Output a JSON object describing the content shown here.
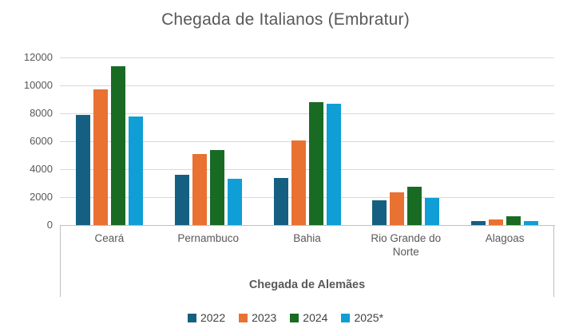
{
  "chart_data": {
    "type": "bar",
    "title": "Chegada de Italianos (Embratur)",
    "secondary_axis_label": "Chegada de Alemães",
    "categories": [
      "Ceará",
      "Pernambuco",
      "Bahia",
      "Rio Grande do Norte",
      "Alagoas"
    ],
    "series": [
      {
        "name": "2022",
        "color": "#156082",
        "values": [
          7900,
          3580,
          3350,
          1780,
          310
        ]
      },
      {
        "name": "2023",
        "color": "#E97132",
        "values": [
          9700,
          5080,
          6060,
          2340,
          430
        ]
      },
      {
        "name": "2024",
        "color": "#196B24",
        "values": [
          11400,
          5350,
          8820,
          2720,
          620
        ]
      },
      {
        "name": "2025*",
        "color": "#0F9ED5",
        "values": [
          7750,
          3330,
          8680,
          1930,
          290
        ]
      }
    ],
    "ylim": [
      0,
      12000
    ],
    "y_ticks": [
      0,
      2000,
      4000,
      6000,
      8000,
      10000,
      12000
    ],
    "grid": true,
    "legend_position": "bottom"
  },
  "colors": {
    "background": "#FFFFFF",
    "gridline": "#D9D9D9",
    "axis_line": "#BFBFBF",
    "axis_text": "#595959",
    "title_text": "#595959",
    "legend_text": "#404040"
  }
}
